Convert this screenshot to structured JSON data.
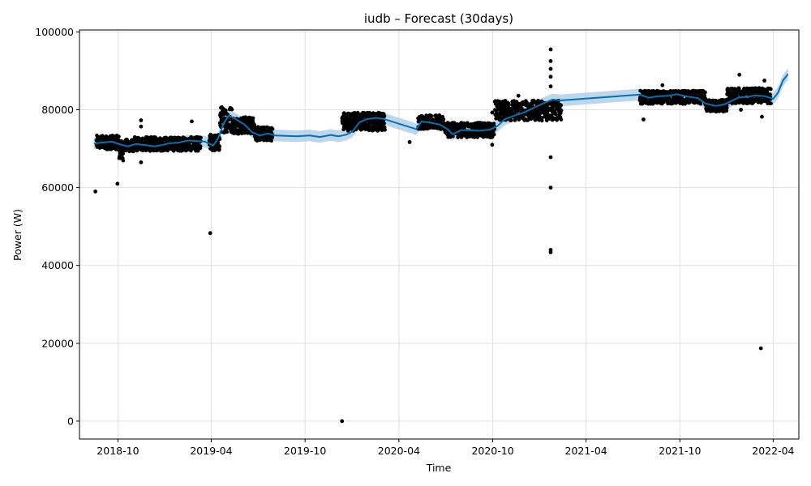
{
  "colors": {
    "background": "#ffffff",
    "observed_points": "#000000",
    "forecast_line": "#0072B2",
    "uncertainty_band": "#a7c8e6",
    "grid": "#e0e0e0"
  },
  "chart_data": {
    "type": "line",
    "title": "iudb – Forecast (30days)",
    "xlabel": "Time",
    "ylabel": "Power (W)",
    "xlim": [
      "2018-07-18",
      "2022-05-21"
    ],
    "ylim": [
      -4600,
      100500
    ],
    "grid": true,
    "x_ticks": [
      {
        "date": "2018-10-01",
        "label": "2018-10"
      },
      {
        "date": "2019-04-01",
        "label": "2019-04"
      },
      {
        "date": "2019-10-01",
        "label": "2019-10"
      },
      {
        "date": "2020-04-01",
        "label": "2020-04"
      },
      {
        "date": "2020-10-01",
        "label": "2020-10"
      },
      {
        "date": "2021-04-01",
        "label": "2021-04"
      },
      {
        "date": "2021-10-01",
        "label": "2021-10"
      },
      {
        "date": "2022-04-01",
        "label": "2022-04"
      }
    ],
    "y_ticks": [
      {
        "value": 0,
        "label": "0"
      },
      {
        "value": 20000,
        "label": "20000"
      },
      {
        "value": 40000,
        "label": "40000"
      },
      {
        "value": 60000,
        "label": "60000"
      },
      {
        "value": 80000,
        "label": "80000"
      },
      {
        "value": 100000,
        "label": "100000"
      }
    ],
    "forecast": {
      "name": "",
      "band_halfwidth": 1500,
      "points": [
        [
          "2018-08-15",
          71300
        ],
        [
          "2018-09-01",
          71600
        ],
        [
          "2018-09-20",
          71800
        ],
        [
          "2018-10-05",
          71100
        ],
        [
          "2018-10-20",
          70600
        ],
        [
          "2018-11-05",
          71200
        ],
        [
          "2018-11-25",
          70900
        ],
        [
          "2018-12-10",
          70600
        ],
        [
          "2018-12-25",
          70900
        ],
        [
          "2019-01-10",
          71400
        ],
        [
          "2019-01-25",
          71500
        ],
        [
          "2019-02-15",
          72100
        ],
        [
          "2019-03-20",
          71800
        ],
        [
          "2019-04-05",
          70800
        ],
        [
          "2019-04-15",
          72800
        ],
        [
          "2019-04-25",
          76500
        ],
        [
          "2019-05-05",
          78500
        ],
        [
          "2019-05-20",
          77500
        ],
        [
          "2019-06-05",
          76200
        ],
        [
          "2019-06-20",
          74200
        ],
        [
          "2019-07-05",
          73400
        ],
        [
          "2019-07-20",
          73900
        ],
        [
          "2019-08-05",
          73400
        ],
        [
          "2019-08-25",
          73300
        ],
        [
          "2019-09-15",
          73200
        ],
        [
          "2019-10-10",
          73400
        ],
        [
          "2019-10-30",
          73000
        ],
        [
          "2019-11-20",
          73500
        ],
        [
          "2019-12-05",
          73200
        ],
        [
          "2019-12-20",
          73600
        ],
        [
          "2019-12-31",
          74300
        ],
        [
          "2020-01-05",
          75000
        ],
        [
          "2020-01-15",
          76800
        ],
        [
          "2020-01-30",
          77600
        ],
        [
          "2020-02-15",
          77900
        ],
        [
          "2020-03-01",
          77700
        ],
        [
          "2020-05-05",
          75000
        ],
        [
          "2020-05-15",
          77000
        ],
        [
          "2020-06-01",
          76700
        ],
        [
          "2020-06-20",
          76200
        ],
        [
          "2020-07-05",
          75000
        ],
        [
          "2020-07-15",
          73700
        ],
        [
          "2020-08-01",
          74800
        ],
        [
          "2020-08-20",
          74700
        ],
        [
          "2020-09-05",
          74600
        ],
        [
          "2020-09-25",
          74900
        ],
        [
          "2020-10-10",
          75800
        ],
        [
          "2020-10-25",
          77600
        ],
        [
          "2020-11-15",
          78600
        ],
        [
          "2020-12-01",
          79300
        ],
        [
          "2020-12-20",
          80500
        ],
        [
          "2021-01-10",
          81800
        ],
        [
          "2021-01-25",
          82600
        ],
        [
          "2021-02-10",
          82400
        ],
        [
          "2021-07-15",
          83900
        ],
        [
          "2021-08-01",
          83100
        ],
        [
          "2021-08-20",
          83500
        ],
        [
          "2021-09-10",
          83600
        ],
        [
          "2021-09-25",
          84000
        ],
        [
          "2021-10-15",
          83400
        ],
        [
          "2021-11-05",
          83000
        ],
        [
          "2021-11-20",
          81600
        ],
        [
          "2021-12-10",
          81000
        ],
        [
          "2021-12-25",
          81300
        ],
        [
          "2022-01-10",
          82300
        ],
        [
          "2022-01-25",
          83200
        ],
        [
          "2022-02-10",
          83300
        ],
        [
          "2022-02-25",
          83700
        ],
        [
          "2022-03-15",
          83500
        ],
        [
          "2022-04-01",
          82800
        ],
        [
          "2022-04-10",
          84300
        ],
        [
          "2022-04-20",
          87500
        ],
        [
          "2022-04-30",
          89200
        ]
      ]
    },
    "observed_segments": [
      {
        "start": "2018-08-20",
        "end": "2018-10-03",
        "level": 71600,
        "spread": 1800
      },
      {
        "start": "2018-10-03",
        "end": "2018-10-12",
        "level": 69500,
        "spread": 2600
      },
      {
        "start": "2018-10-12",
        "end": "2018-11-03",
        "level": 70800,
        "spread": 1600
      },
      {
        "start": "2018-11-03",
        "end": "2019-03-12",
        "level": 71200,
        "spread": 1800
      },
      {
        "start": "2019-03-28",
        "end": "2019-04-18",
        "level": 71500,
        "spread": 2200
      },
      {
        "start": "2019-04-18",
        "end": "2019-05-12",
        "level": 77500,
        "spread": 3400
      },
      {
        "start": "2019-05-12",
        "end": "2019-06-25",
        "level": 76000,
        "spread": 2200
      },
      {
        "start": "2019-06-25",
        "end": "2019-07-30",
        "level": 73800,
        "spread": 1800
      },
      {
        "start": "2019-12-12",
        "end": "2020-03-05",
        "level": 77000,
        "spread": 2400
      },
      {
        "start": "2020-05-08",
        "end": "2020-06-28",
        "level": 76800,
        "spread": 1800
      },
      {
        "start": "2020-06-28",
        "end": "2020-10-05",
        "level": 74800,
        "spread": 1900
      },
      {
        "start": "2020-10-05",
        "end": "2021-02-12",
        "level": 79800,
        "spread": 2600
      },
      {
        "start": "2021-07-15",
        "end": "2021-11-20",
        "level": 83200,
        "spread": 1700
      },
      {
        "start": "2021-11-20",
        "end": "2022-01-01",
        "level": 81000,
        "spread": 1600
      },
      {
        "start": "2022-01-01",
        "end": "2022-03-28",
        "level": 83600,
        "spread": 2000
      }
    ],
    "outliers": [
      [
        "2018-08-18",
        59000
      ],
      [
        "2018-09-30",
        61000
      ],
      [
        "2018-11-15",
        77300
      ],
      [
        "2018-11-15",
        75700
      ],
      [
        "2018-11-15",
        66500
      ],
      [
        "2019-02-22",
        77000
      ],
      [
        "2019-03-30",
        48300
      ],
      [
        "2019-12-12",
        0
      ],
      [
        "2020-04-22",
        71700
      ],
      [
        "2020-09-30",
        79300
      ],
      [
        "2020-09-30",
        71000
      ],
      [
        "2020-11-20",
        83600
      ],
      [
        "2021-01-22",
        95500
      ],
      [
        "2021-01-22",
        92500
      ],
      [
        "2021-01-22",
        90500
      ],
      [
        "2021-01-22",
        88500
      ],
      [
        "2021-01-22",
        86000
      ],
      [
        "2021-01-22",
        67800
      ],
      [
        "2021-01-22",
        60000
      ],
      [
        "2021-01-22",
        44000
      ],
      [
        "2021-01-22",
        43400
      ],
      [
        "2021-07-22",
        77500
      ],
      [
        "2021-08-28",
        86300
      ],
      [
        "2022-01-25",
        89000
      ],
      [
        "2022-01-28",
        80000
      ],
      [
        "2022-03-10",
        78200
      ],
      [
        "2022-03-15",
        87500
      ],
      [
        "2022-03-08",
        18700
      ]
    ]
  }
}
